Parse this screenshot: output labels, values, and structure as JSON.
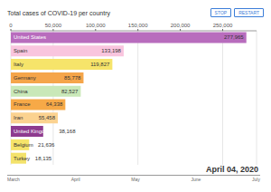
{
  "chart_data": {
    "type": "bar",
    "orientation": "horizontal",
    "title": "Total cases of COVID-19 per country",
    "categories": [
      "United States",
      "Spain",
      "Italy",
      "Germany",
      "China",
      "France",
      "Iran",
      "United Kingdom",
      "Belgium",
      "Turkey"
    ],
    "values": [
      277965,
      133198,
      119827,
      85778,
      82527,
      64338,
      55458,
      38168,
      21636,
      18135
    ],
    "value_labels": [
      "277,965",
      "133,198",
      "119,827",
      "85,778",
      "82,527",
      "64,338",
      "55,458",
      "38,168",
      "21,636",
      "18,135"
    ],
    "data_labels": true,
    "colors": [
      "#b86cbd",
      "#f9c5de",
      "#f6e46a",
      "#f5a54a",
      "#c9e8b8",
      "#f7a947",
      "#fbd290",
      "#8e3b8f",
      "#f6e46a",
      "#f3e26b"
    ],
    "xlim": [
      0,
      290000
    ],
    "xticks": [
      {
        "value": 0,
        "label": "0"
      },
      {
        "value": 50000,
        "label": "50,000"
      },
      {
        "value": 100000,
        "label": "100,000"
      },
      {
        "value": 150000,
        "label": "150,000"
      },
      {
        "value": 200000,
        "label": "200,000"
      },
      {
        "value": 250000,
        "label": "250,000"
      }
    ],
    "grid": true,
    "annotations": [
      "April 04, 2020"
    ],
    "buttons": [
      "STOP",
      "RESTART"
    ],
    "timeline": [
      "March",
      "April",
      "May",
      "June",
      "July"
    ]
  }
}
